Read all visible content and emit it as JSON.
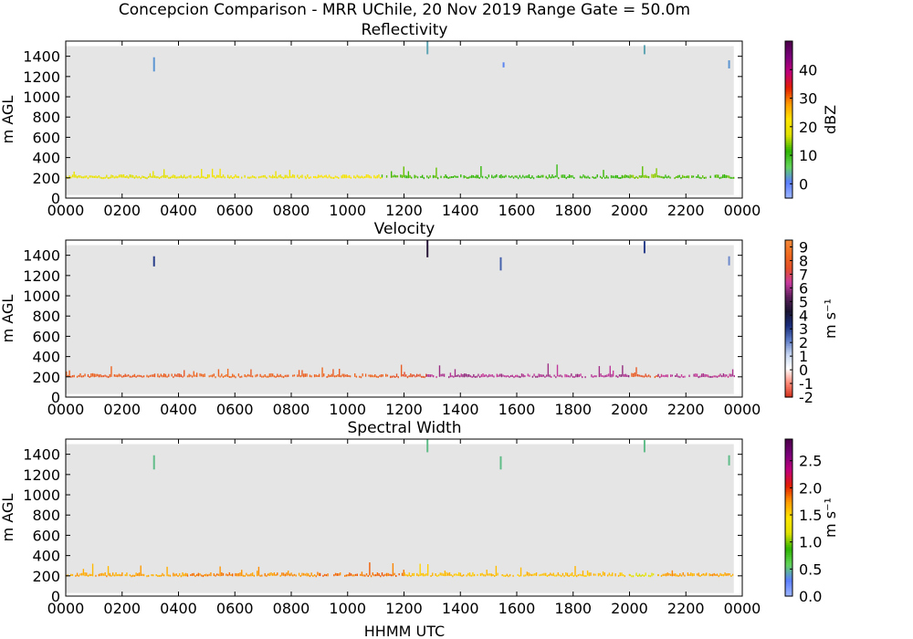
{
  "figure": {
    "title": "Concepcion Comparison - MRR UChile, 20 Nov 2019 Range Gate = 50.0m",
    "xlabel": "HHMM UTC"
  },
  "chart_data": [
    {
      "type": "heatmap",
      "title": "Reflectivity",
      "ylabel": "m AGL",
      "x_ticks": [
        "0000",
        "0200",
        "0400",
        "0600",
        "0800",
        "1000",
        "1200",
        "1400",
        "1600",
        "1800",
        "2000",
        "2200",
        "0000"
      ],
      "x_range_hours": [
        0,
        24
      ],
      "y_ticks": [
        0,
        200,
        400,
        600,
        800,
        1000,
        1200,
        1400
      ],
      "ylim": [
        0,
        1550
      ],
      "background_color": "#e5e5e5",
      "colorbar": {
        "label": "dBZ",
        "ticks": [
          "0",
          "10",
          "20",
          "30",
          "40"
        ],
        "tick_values": [
          0,
          10,
          20,
          30,
          40
        ],
        "range": [
          -5,
          50
        ],
        "colors": [
          "#9db6ff",
          "#5a7dff",
          "#62d45a",
          "#2db300",
          "#dfe100",
          "#ffe500",
          "#ff9a00",
          "#e21f00",
          "#c1007a",
          "#7a007a",
          "#4a0048"
        ]
      },
      "signal_band_m": [
        150,
        340
      ],
      "segments": [
        {
          "start": 0.0,
          "end": 2.2,
          "value": 19
        },
        {
          "start": 2.2,
          "end": 4.3,
          "value": 18
        },
        {
          "start": 4.3,
          "end": 6.0,
          "value": 20
        },
        {
          "start": 6.0,
          "end": 8.5,
          "value": 19
        },
        {
          "start": 8.5,
          "end": 11.2,
          "value": 21
        },
        {
          "start": 11.2,
          "end": 13.5,
          "value": 12
        },
        {
          "start": 13.5,
          "end": 20.0,
          "value": 11
        },
        {
          "start": 20.0,
          "end": 21.2,
          "value": 14
        },
        {
          "start": 21.2,
          "end": 23.7,
          "value": 12
        }
      ],
      "sparse": [
        {
          "t": 3.1,
          "h0": 1250,
          "h1": 1390,
          "value": 2
        },
        {
          "t": 12.8,
          "h0": 1420,
          "h1": 1550,
          "value": 3
        },
        {
          "t": 20.5,
          "h0": 1420,
          "h1": 1510,
          "value": 3
        },
        {
          "t": 23.5,
          "h0": 1280,
          "h1": 1360,
          "value": 2
        },
        {
          "t": 15.5,
          "h0": 1290,
          "h1": 1340,
          "value": 1
        }
      ]
    },
    {
      "type": "heatmap",
      "title": "Velocity",
      "ylabel": "m AGL",
      "x_ticks": [
        "0000",
        "0200",
        "0400",
        "0600",
        "0800",
        "1000",
        "1200",
        "1400",
        "1600",
        "1800",
        "2000",
        "2200",
        "0000"
      ],
      "x_range_hours": [
        0,
        24
      ],
      "y_ticks": [
        0,
        200,
        400,
        600,
        800,
        1000,
        1200,
        1400
      ],
      "ylim": [
        0,
        1550
      ],
      "background_color": "#e5e5e5",
      "colorbar": {
        "label": "m s⁻¹",
        "ticks": [
          "-2",
          "-1",
          "0",
          "1",
          "2",
          "3",
          "4",
          "5",
          "6",
          "7",
          "8",
          "9"
        ],
        "tick_values": [
          -2,
          -1,
          0,
          1,
          2,
          3,
          4,
          5,
          6,
          7,
          8,
          9
        ],
        "range": [
          -2,
          9.5
        ],
        "colors": [
          "#d2301b",
          "#ff8c7a",
          "#ffffff",
          "#c5d4f0",
          "#5a79c4",
          "#1a2c7a",
          "#1a1430",
          "#5a1f5a",
          "#c83aa0",
          "#e34f2a",
          "#ef6a1f",
          "#f48a3b"
        ]
      },
      "signal_band_m": [
        150,
        340
      ],
      "segments": [
        {
          "start": 0.0,
          "end": 4.3,
          "value": 8.0
        },
        {
          "start": 4.3,
          "end": 6.0,
          "value": 8.4
        },
        {
          "start": 6.0,
          "end": 11.5,
          "value": 8.2
        },
        {
          "start": 11.5,
          "end": 12.8,
          "value": 7.6
        },
        {
          "start": 12.8,
          "end": 20.0,
          "value": 6.1
        },
        {
          "start": 20.0,
          "end": 21.0,
          "value": 7.8
        },
        {
          "start": 21.0,
          "end": 23.7,
          "value": 6.2
        }
      ],
      "sparse": [
        {
          "t": 3.1,
          "h0": 1290,
          "h1": 1390,
          "value": 3
        },
        {
          "t": 12.8,
          "h0": 1380,
          "h1": 1550,
          "value": 4.5
        },
        {
          "t": 15.4,
          "h0": 1250,
          "h1": 1380,
          "value": 2.5
        },
        {
          "t": 20.5,
          "h0": 1420,
          "h1": 1540,
          "value": 3
        },
        {
          "t": 23.5,
          "h0": 1300,
          "h1": 1390,
          "value": 2
        }
      ]
    },
    {
      "type": "heatmap",
      "title": "Spectral Width",
      "ylabel": "m AGL",
      "x_ticks": [
        "0000",
        "0200",
        "0400",
        "0600",
        "0800",
        "1000",
        "1200",
        "1400",
        "1600",
        "1800",
        "2000",
        "2200",
        "0000"
      ],
      "x_range_hours": [
        0,
        24
      ],
      "y_ticks": [
        0,
        200,
        400,
        600,
        800,
        1000,
        1200,
        1400
      ],
      "ylim": [
        0,
        1550
      ],
      "background_color": "#e5e5e5",
      "colorbar": {
        "label": "m s⁻¹",
        "ticks": [
          "0.0",
          "0.5",
          "1.0",
          "1.5",
          "2.0",
          "2.5"
        ],
        "tick_values": [
          0.0,
          0.5,
          1.0,
          1.5,
          2.0,
          2.5
        ],
        "range": [
          0.0,
          2.9
        ],
        "colors": [
          "#9db6ff",
          "#5a7dff",
          "#62d45a",
          "#2db300",
          "#dfe100",
          "#ffe500",
          "#ff9a00",
          "#e21f00",
          "#c1007a",
          "#7a007a",
          "#4a0048"
        ]
      },
      "signal_band_m": [
        150,
        340
      ],
      "segments": [
        {
          "start": 0.0,
          "end": 4.3,
          "value": 1.7
        },
        {
          "start": 4.3,
          "end": 6.0,
          "value": 1.8
        },
        {
          "start": 6.0,
          "end": 9.0,
          "value": 1.75
        },
        {
          "start": 9.0,
          "end": 12.0,
          "value": 1.85
        },
        {
          "start": 12.0,
          "end": 20.0,
          "value": 1.6
        },
        {
          "start": 20.0,
          "end": 21.0,
          "value": 1.2
        },
        {
          "start": 21.0,
          "end": 23.7,
          "value": 1.7
        }
      ],
      "sparse": [
        {
          "t": 3.1,
          "h0": 1250,
          "h1": 1390,
          "value": 0.5
        },
        {
          "t": 12.8,
          "h0": 1420,
          "h1": 1550,
          "value": 0.5
        },
        {
          "t": 15.4,
          "h0": 1250,
          "h1": 1380,
          "value": 0.5
        },
        {
          "t": 20.5,
          "h0": 1420,
          "h1": 1540,
          "value": 0.5
        },
        {
          "t": 23.5,
          "h0": 1290,
          "h1": 1390,
          "value": 0.5
        }
      ]
    }
  ]
}
